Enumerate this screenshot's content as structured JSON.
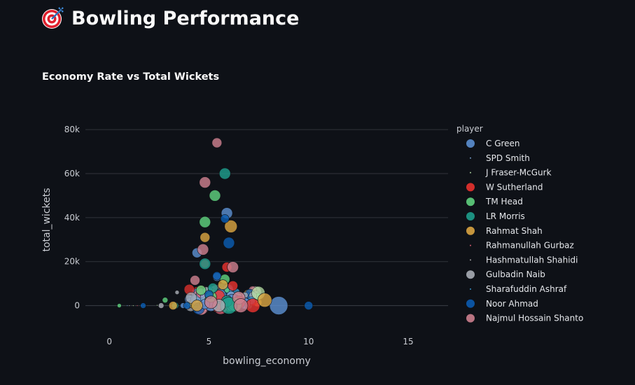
{
  "page": {
    "title": "Bowling Performance",
    "icon": "direct-hit-target-icon"
  },
  "chart_data": {
    "type": "scatter",
    "title": "Economy Rate vs Total Wickets",
    "xlabel": "bowling_economy",
    "ylabel": "total_wickets",
    "xlim": [
      -1.2,
      17
    ],
    "ylim": [
      -10000,
      88000
    ],
    "x_ticks": [
      0,
      5,
      10,
      15
    ],
    "x_tick_labels": [
      "0",
      "5",
      "10",
      "15"
    ],
    "y_ticks": [
      0,
      20000,
      40000,
      60000,
      80000
    ],
    "y_tick_labels": [
      "0",
      "20k",
      "40k",
      "60k",
      "80k"
    ],
    "grid": "horizontal",
    "legend_title": "player",
    "legend_placement": "right",
    "colors": {
      "background": "#0e1117",
      "grid": "#31343b",
      "text": "#fafafa"
    },
    "series": [
      {
        "name": "C Green",
        "color": "#5b8fd0",
        "points": [
          [
            5.9,
            42000,
            8
          ],
          [
            4.4,
            24000,
            7
          ],
          [
            5.4,
            13000,
            6
          ],
          [
            6.2,
            2000,
            10
          ],
          [
            8.5,
            0,
            13
          ],
          [
            5.1,
            300,
            9
          ],
          [
            4.8,
            700,
            7
          ],
          [
            6.8,
            1000,
            8
          ],
          [
            3.7,
            0,
            4
          ]
        ]
      },
      {
        "name": "SPD Smith",
        "color": "#7fa7d8",
        "points": [
          [
            0.9,
            0,
            1
          ],
          [
            1.6,
            0,
            1
          ]
        ]
      },
      {
        "name": "J Fraser-McGurk",
        "color": "#b8e0a6",
        "points": [
          [
            1.2,
            0,
            1
          ],
          [
            2.4,
            100,
            1
          ]
        ]
      },
      {
        "name": "W Sutherland",
        "color": "#e8322e",
        "points": [
          [
            5.9,
            17500,
            7
          ],
          [
            6.2,
            9000,
            7
          ],
          [
            5.5,
            4500,
            8
          ],
          [
            7.2,
            0,
            10
          ],
          [
            6.5,
            1500,
            9
          ],
          [
            4.8,
            19000,
            6
          ]
        ]
      },
      {
        "name": "TM Head",
        "color": "#5fd17e",
        "points": [
          [
            4.8,
            38000,
            8
          ],
          [
            5.3,
            50000,
            8
          ],
          [
            4.6,
            7000,
            7
          ],
          [
            5.8,
            12000,
            7
          ],
          [
            5.1,
            4000,
            8
          ],
          [
            0.5,
            0,
            3
          ],
          [
            2.8,
            2500,
            4
          ],
          [
            6.3,
            500,
            10
          ]
        ]
      },
      {
        "name": "LR Morris",
        "color": "#1e9e8c",
        "points": [
          [
            5.8,
            60000,
            8
          ],
          [
            4.8,
            19000,
            8
          ],
          [
            5.2,
            8000,
            7
          ],
          [
            5.9,
            2000,
            8
          ],
          [
            3.3,
            0,
            5
          ],
          [
            6.0,
            0,
            12
          ]
        ]
      },
      {
        "name": "Rahmat Shah",
        "color": "#d9a441",
        "points": [
          [
            4.8,
            31000,
            7
          ],
          [
            6.1,
            36000,
            9
          ],
          [
            7.8,
            2500,
            10
          ],
          [
            5.7,
            9500,
            7
          ],
          [
            4.4,
            0,
            8
          ],
          [
            3.2,
            0,
            6
          ]
        ]
      },
      {
        "name": "Rahmanullah Gurbaz",
        "color": "#e8647a",
        "points": [
          [
            1.4,
            0,
            1
          ]
        ]
      },
      {
        "name": "Hashmatullah Shahidi",
        "color": "#b0b0b0",
        "points": [
          [
            1.0,
            0,
            1
          ]
        ]
      },
      {
        "name": "Gulbadin Naib",
        "color": "#a9adb5",
        "points": [
          [
            3.4,
            6000,
            3
          ],
          [
            5.5,
            0,
            9
          ],
          [
            2.6,
            0,
            4
          ]
        ]
      },
      {
        "name": "Sharafuddin Ashraf",
        "color": "#3a9fd6",
        "points": [
          [
            1.7,
            0,
            1
          ]
        ]
      },
      {
        "name": "Noor Ahmad",
        "color": "#0b5bb0",
        "points": [
          [
            6.0,
            28500,
            8
          ],
          [
            5.8,
            39500,
            6
          ],
          [
            5.4,
            13500,
            6
          ],
          [
            5.0,
            5000,
            6
          ],
          [
            10.0,
            0,
            6
          ],
          [
            1.7,
            0,
            4
          ],
          [
            3.9,
            0,
            5
          ]
        ]
      },
      {
        "name": "Najmul Hossain Shanto",
        "color": "#cc7f8e",
        "points": [
          [
            5.4,
            74000,
            7
          ],
          [
            4.8,
            56000,
            8
          ],
          [
            4.7,
            25500,
            8
          ],
          [
            6.2,
            17500,
            8
          ],
          [
            4.3,
            11500,
            7
          ],
          [
            6.5,
            3500,
            9
          ],
          [
            5.1,
            1500,
            9
          ],
          [
            6.6,
            0,
            10
          ]
        ]
      }
    ]
  }
}
